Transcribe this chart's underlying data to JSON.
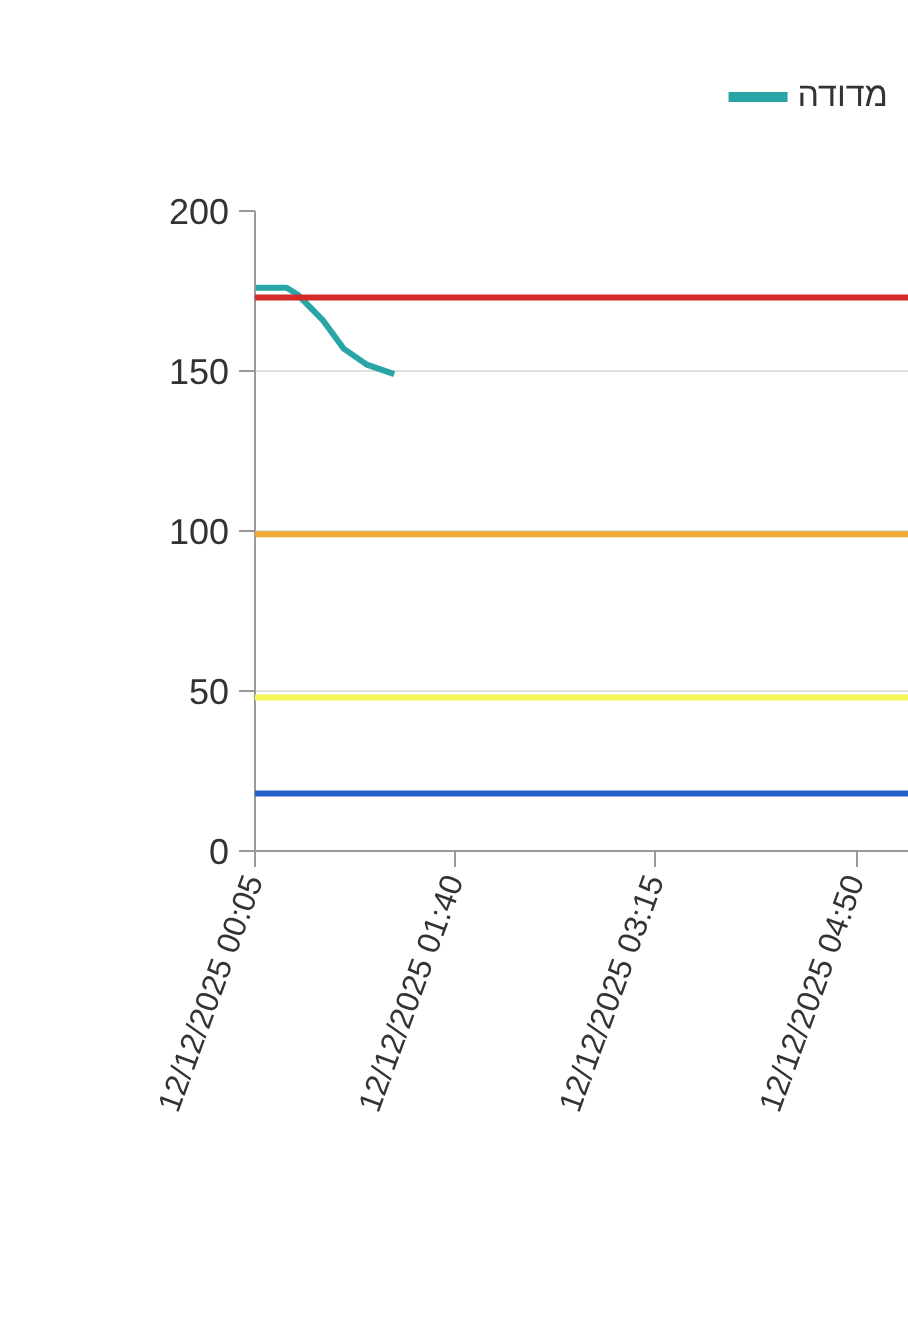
{
  "chart_data": {
    "type": "line",
    "x": [
      "2025-12-12T00:05",
      "2025-12-12T00:20",
      "2025-12-12T00:25",
      "2025-12-12T00:37",
      "2025-12-12T00:47",
      "2025-12-12T00:58",
      "2025-12-12T01:11"
    ],
    "series": [
      {
        "name": "מדודה",
        "color": "#2aa5a5",
        "values": [
          176,
          176,
          174,
          166,
          157,
          152,
          149
        ]
      }
    ],
    "xlim": [
      "2025-12-12T00:05",
      "2025-12-12T05:15"
    ],
    "xticks": [
      {
        "value": "2025-12-12T00:05",
        "label": "12/12/2025 00:05"
      },
      {
        "value": "2025-12-12T01:40",
        "label": "12/12/2025 01:40"
      },
      {
        "value": "2025-12-12T03:15",
        "label": "12/12/2025 03:15"
      },
      {
        "value": "2025-12-12T04:50",
        "label": "12/12/2025 04:50"
      }
    ],
    "ylim": [
      0,
      200
    ],
    "yticks": [
      0,
      50,
      100,
      150,
      200
    ],
    "ref_lines": [
      {
        "axis": "y",
        "value": 173,
        "color": "#d42a2a"
      },
      {
        "axis": "y",
        "value": 99,
        "color": "#f0a830"
      },
      {
        "axis": "y",
        "value": 48,
        "color": "#f5f55a"
      },
      {
        "axis": "y",
        "value": 18,
        "color": "#2060c8"
      }
    ],
    "grid": "y",
    "legend": "top right",
    "marker": "none",
    "line_style": "solid"
  }
}
